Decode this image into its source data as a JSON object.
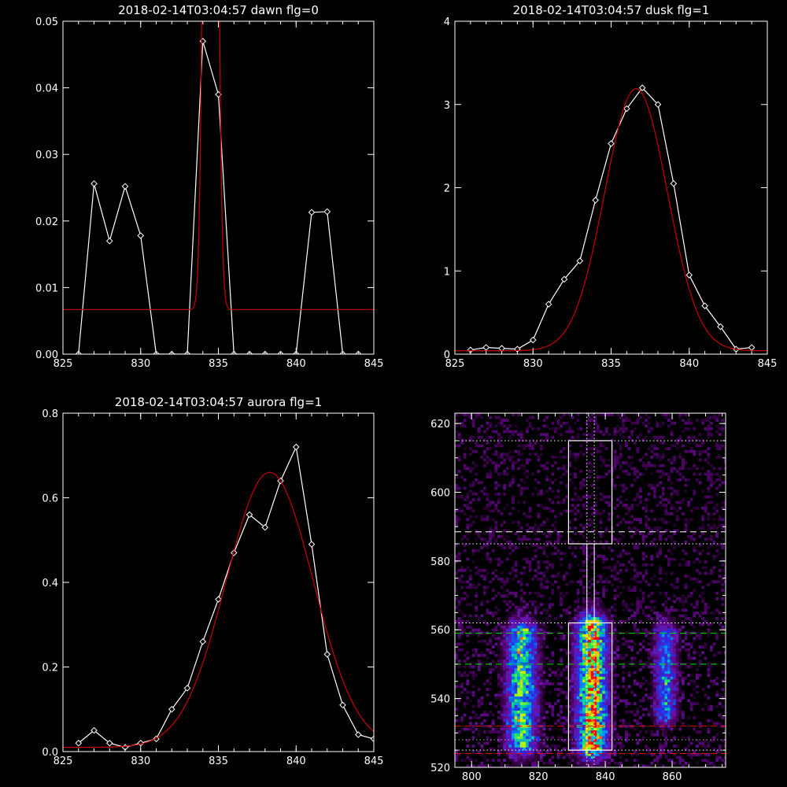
{
  "chart_data": [
    {
      "type": "line",
      "title": "2018-02-14T03:04:57 dawn flg=0",
      "xlim": [
        825,
        845
      ],
      "ylim": [
        0,
        0.05
      ],
      "xticks": [
        "825",
        "830",
        "835",
        "840",
        "845"
      ],
      "yticks": [
        "0.00",
        "0.01",
        "0.02",
        "0.03",
        "0.04",
        "0.05"
      ],
      "xtick_values": [
        825,
        830,
        835,
        840,
        845
      ],
      "ytick_values": [
        0,
        0.01,
        0.02,
        0.03,
        0.04,
        0.05
      ],
      "series": [
        {
          "kind": "data",
          "color": "#ffffff",
          "x": [
            826,
            827,
            828,
            829,
            830,
            831,
            832,
            833,
            834,
            835,
            836,
            837,
            838,
            839,
            840,
            841,
            842,
            843,
            844
          ],
          "y": [
            0,
            0.0256,
            0.017,
            0.0252,
            0.0178,
            0,
            0,
            0,
            0.047,
            0.039,
            0,
            0,
            0,
            0,
            0,
            0.0213,
            0.0214,
            0,
            0
          ]
        },
        {
          "kind": "fit",
          "color": "#cc0000",
          "fit": {
            "type": "gaussian",
            "offset": 0.0067,
            "amplitude": 0.28,
            "center": 834.5,
            "sigma": 0.3
          }
        }
      ]
    },
    {
      "type": "line",
      "title": "2018-02-14T03:04:57 dusk flg=1",
      "xlim": [
        825,
        845
      ],
      "ylim": [
        0,
        4
      ],
      "xticks": [
        "825",
        "830",
        "835",
        "840",
        "845"
      ],
      "yticks": [
        "0",
        "1",
        "2",
        "3",
        "4"
      ],
      "xtick_values": [
        825,
        830,
        835,
        840,
        845
      ],
      "ytick_values": [
        0,
        1,
        2,
        3,
        4
      ],
      "series": [
        {
          "kind": "data",
          "color": "#ffffff",
          "x": [
            826,
            827,
            828,
            829,
            830,
            831,
            832,
            833,
            834,
            835,
            836,
            837,
            838,
            839,
            840,
            841,
            842,
            843,
            844
          ],
          "y": [
            0.05,
            0.08,
            0.07,
            0.06,
            0.17,
            0.6,
            0.9,
            1.12,
            1.85,
            2.53,
            2.95,
            3.2,
            3.0,
            2.05,
            0.95,
            0.58,
            0.33,
            0.06,
            0.08
          ]
        },
        {
          "kind": "fit",
          "color": "#cc0000",
          "fit": {
            "type": "gaussian",
            "offset": 0.04,
            "amplitude": 3.15,
            "center": 836.6,
            "sigma": 2.0
          }
        }
      ]
    },
    {
      "type": "line",
      "title": "2018-02-14T03:04:57 aurora flg=1",
      "xlim": [
        825,
        845
      ],
      "ylim": [
        0,
        0.8
      ],
      "xticks": [
        "825",
        "830",
        "835",
        "840",
        "845"
      ],
      "yticks": [
        "0.0",
        "0.2",
        "0.4",
        "0.6",
        "0.8"
      ],
      "xtick_values": [
        825,
        830,
        835,
        840,
        845
      ],
      "ytick_values": [
        0,
        0.2,
        0.4,
        0.6,
        0.8
      ],
      "series": [
        {
          "kind": "data",
          "color": "#ffffff",
          "x": [
            826,
            827,
            828,
            829,
            830,
            831,
            832,
            833,
            834,
            835,
            836,
            837,
            838,
            839,
            840,
            841,
            842,
            843,
            844,
            845
          ],
          "y": [
            0.02,
            0.05,
            0.02,
            0.01,
            0.02,
            0.03,
            0.1,
            0.15,
            0.26,
            0.36,
            0.47,
            0.56,
            0.53,
            0.64,
            0.72,
            0.49,
            0.23,
            0.11,
            0.04,
            0.03
          ]
        },
        {
          "kind": "fit",
          "color": "#cc0000",
          "fit": {
            "type": "gaussian",
            "offset": 0.01,
            "amplitude": 0.65,
            "center": 838.3,
            "sigma": 2.8
          }
        }
      ]
    },
    {
      "type": "heatmap",
      "title": "",
      "xlim": [
        795,
        876
      ],
      "ylim": [
        520,
        623
      ],
      "xticks": [
        "800",
        "820",
        "840",
        "860"
      ],
      "yticks": [
        "520",
        "540",
        "560",
        "580",
        "600",
        "620"
      ],
      "xtick_values": [
        800,
        820,
        840,
        860
      ],
      "ytick_values": [
        520,
        540,
        560,
        580,
        600,
        620
      ],
      "emission_columns": [
        {
          "center": 815,
          "width": 3.0,
          "y_range": [
            526,
            560
          ],
          "peak": 0.75
        },
        {
          "center": 836,
          "width": 3.0,
          "y_range": [
            525,
            562
          ],
          "peak": 1.0
        },
        {
          "center": 858,
          "width": 2.2,
          "y_range": [
            535,
            560
          ],
          "peak": 0.5
        }
      ],
      "boxes": [
        {
          "x": [
            829,
            842
          ],
          "y": [
            585,
            615
          ],
          "color": "#ffffff"
        },
        {
          "x": [
            829,
            842
          ],
          "y": [
            525,
            562
          ],
          "color": "#ffffff"
        }
      ],
      "hlines": [
        {
          "y": 615,
          "style": "dotted",
          "color": "#ffffff"
        },
        {
          "y": 588.5,
          "style": "dashed",
          "color": "#ffffff"
        },
        {
          "y": 585,
          "style": "dotted",
          "color": "#ffffff"
        },
        {
          "y": 562,
          "style": "dotted",
          "color": "#ffffff"
        },
        {
          "y": 559,
          "style": "dashed",
          "color": "#00dd00"
        },
        {
          "y": 550,
          "style": "dashed",
          "color": "#00dd00"
        },
        {
          "y": 532,
          "style": "dashed",
          "color": "#ee0000"
        },
        {
          "y": 528,
          "style": "dotted",
          "color": "#aaaaaa"
        },
        {
          "y": 525,
          "style": "dotted",
          "color": "#ffffff"
        },
        {
          "y": 524,
          "style": "dashed",
          "color": "#ee0000"
        }
      ],
      "vlines": [
        {
          "x": 834.5,
          "style": "dotted",
          "color": "#ffffff"
        },
        {
          "x": 836.7,
          "style": "dotted",
          "color": "#ffffff"
        }
      ],
      "colormap": "rainbow"
    }
  ]
}
